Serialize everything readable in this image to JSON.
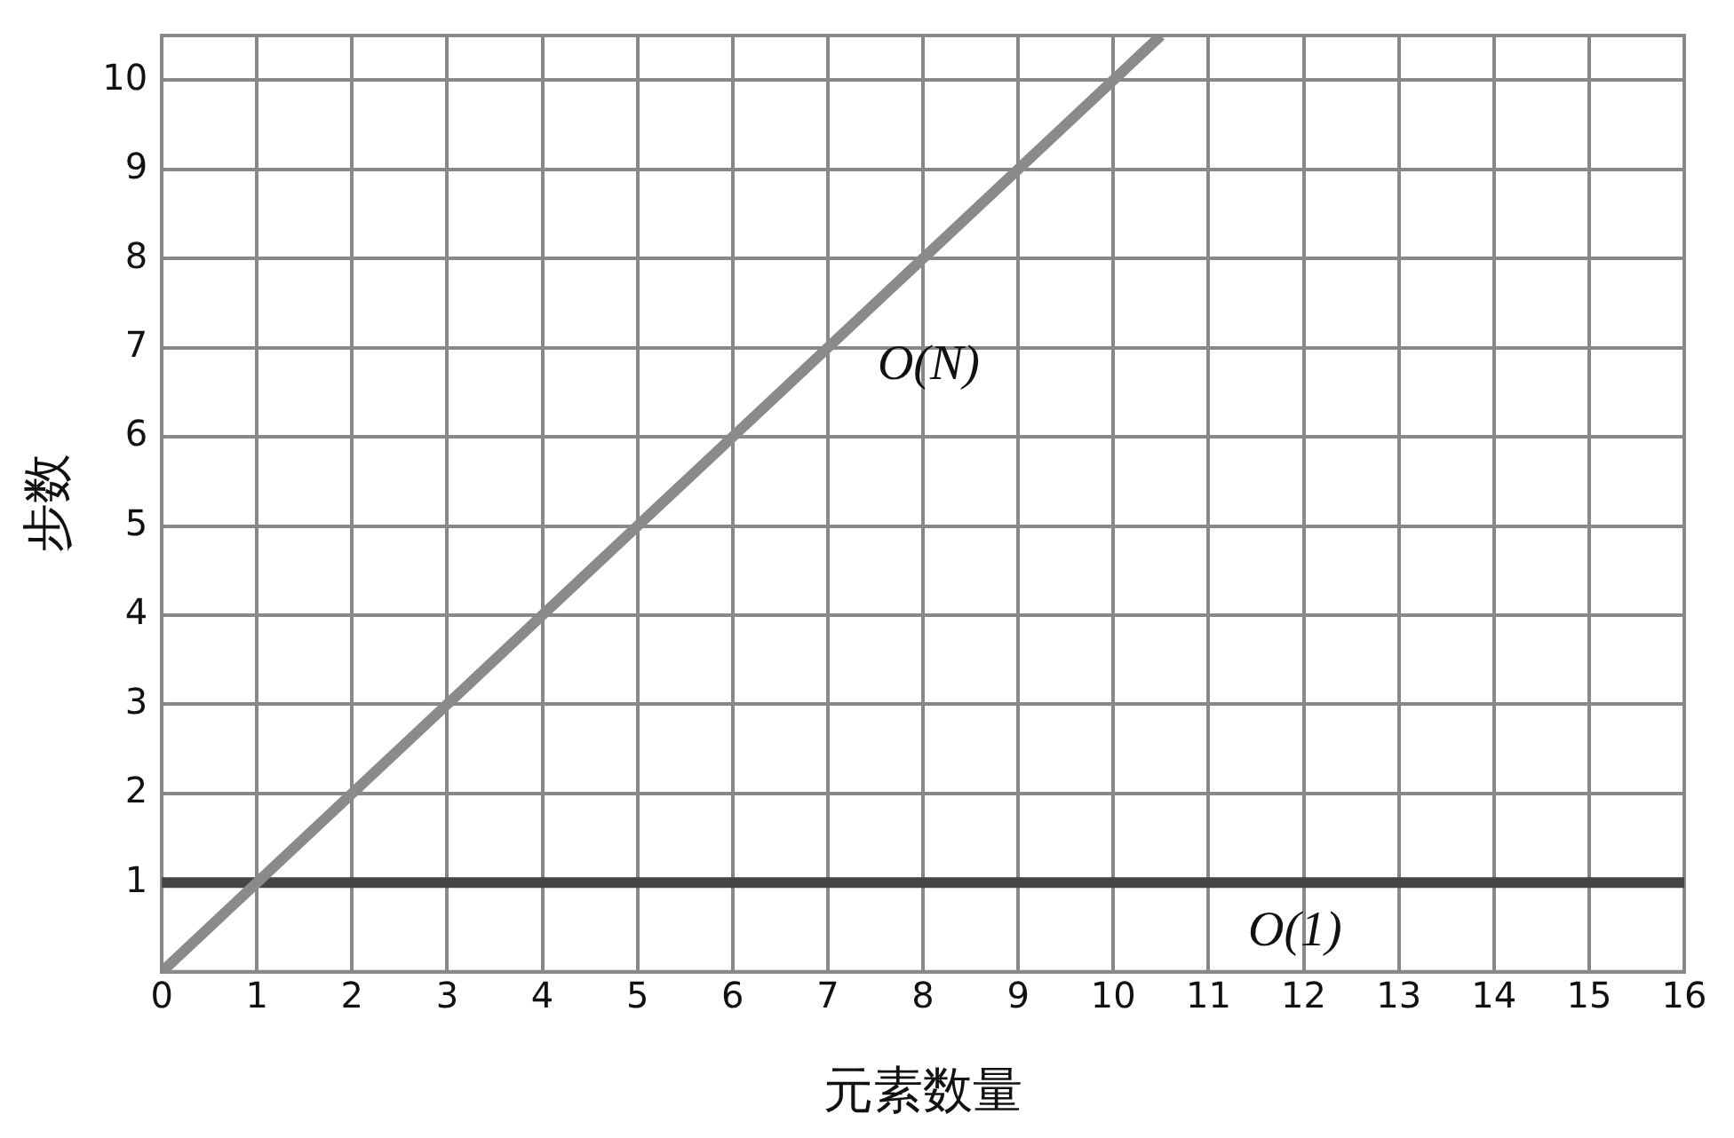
{
  "chart_data": {
    "type": "line",
    "xlabel": "元素数量",
    "ylabel": "步数",
    "xlim": [
      0,
      16
    ],
    "xticks": [
      0,
      1,
      2,
      3,
      4,
      5,
      6,
      7,
      8,
      9,
      10,
      11,
      12,
      13,
      14,
      15,
      16
    ],
    "ylim": [
      0,
      10.5
    ],
    "yticks": [
      {
        "value": 0,
        "label": null
      },
      1,
      2,
      3,
      4,
      5,
      6,
      7,
      8,
      9,
      10
    ],
    "series": [
      {
        "name": "O(N)",
        "color": "#8a8a8a",
        "x": [
          0,
          10.5
        ],
        "values": [
          0,
          10.5
        ]
      },
      {
        "name": "O(1)",
        "color": "#454545",
        "x": [
          0,
          16
        ],
        "values": [
          1,
          1
        ]
      }
    ],
    "grid": true,
    "legend": false,
    "marker": "none",
    "line_style": "solid"
  }
}
